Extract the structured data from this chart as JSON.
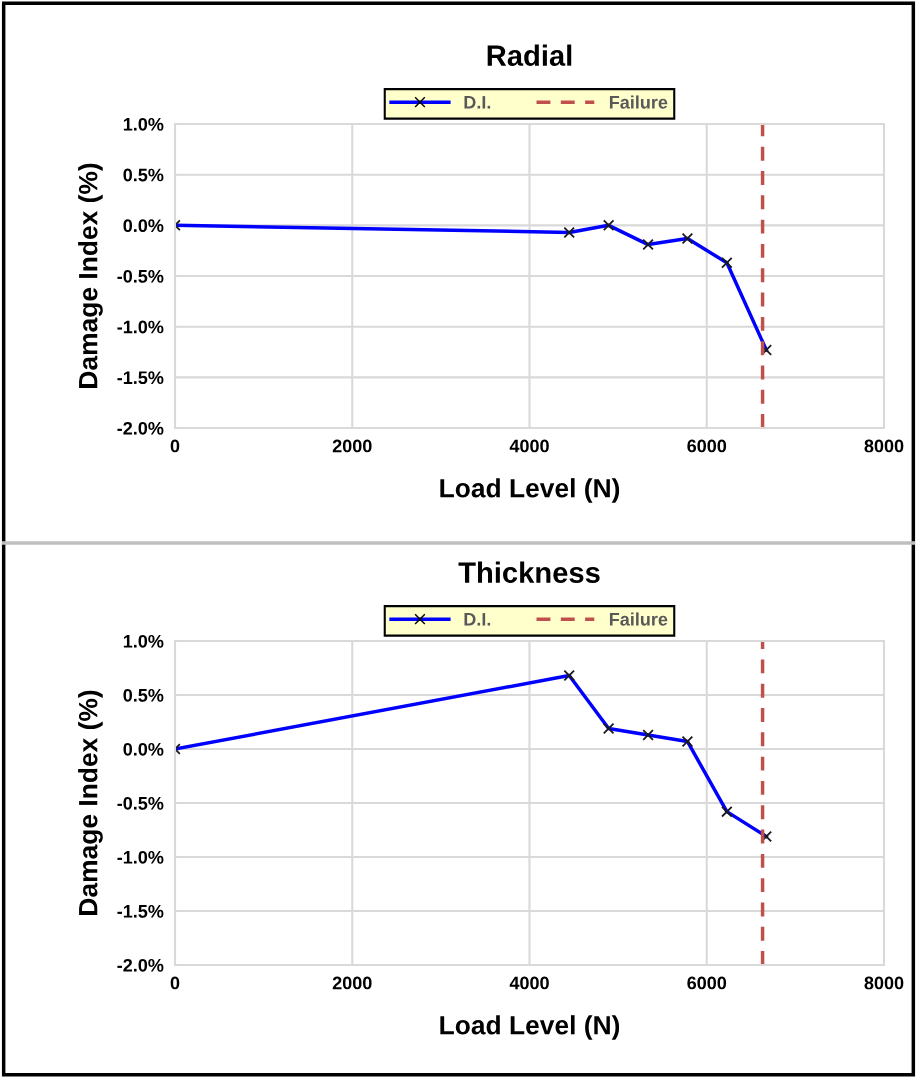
{
  "chart_data": [
    {
      "type": "line",
      "title": "Radial",
      "xlabel": "Load Level (N)",
      "ylabel": "Damage Index (%)",
      "x": [
        0,
        4448,
        4893,
        5338,
        5782,
        6227,
        6672
      ],
      "series": [
        {
          "name": "D.I.",
          "color": "#0000ff",
          "values": [
            0.0,
            -0.07,
            0.0,
            -0.19,
            -0.13,
            -0.37,
            -1.23
          ]
        }
      ],
      "ref_lines": [
        {
          "axis": "x",
          "value": 6630,
          "label": "Failure",
          "color": "#c0504d",
          "line_style": "dashed"
        }
      ],
      "xlim": [
        0,
        8000
      ],
      "xticks": [
        0,
        2000,
        4000,
        6000,
        8000
      ],
      "ylim": [
        -2.0,
        1.0
      ],
      "yticks": [
        {
          "value": -2.0,
          "label": "-2.0%"
        },
        {
          "value": -1.5,
          "label": "-1.5%"
        },
        {
          "value": -1.0,
          "label": "-1.0%"
        },
        {
          "value": -0.5,
          "label": "-0.5%"
        },
        {
          "value": 0.0,
          "label": "0.0%"
        },
        {
          "value": 0.5,
          "label": "0.5%"
        },
        {
          "value": 1.0,
          "label": "1.0%"
        }
      ],
      "grid": true,
      "legend": "top",
      "marker": "cross",
      "line_style": "solid"
    },
    {
      "type": "line",
      "title": "Thickness",
      "xlabel": "Load Level (N)",
      "ylabel": "Damage Index (%)",
      "x": [
        0,
        4448,
        4893,
        5338,
        5782,
        6227,
        6672
      ],
      "series": [
        {
          "name": "D.I.",
          "color": "#0000ff",
          "values": [
            0.0,
            0.68,
            0.19,
            0.13,
            0.07,
            -0.58,
            -0.81
          ]
        }
      ],
      "ref_lines": [
        {
          "axis": "x",
          "value": 6630,
          "label": "Failure",
          "color": "#c0504d",
          "line_style": "dashed"
        }
      ],
      "xlim": [
        0,
        8000
      ],
      "xticks": [
        0,
        2000,
        4000,
        6000,
        8000
      ],
      "ylim": [
        -2.0,
        1.0
      ],
      "yticks": [
        {
          "value": -2.0,
          "label": "-2.0%"
        },
        {
          "value": -1.5,
          "label": "-1.5%"
        },
        {
          "value": -1.0,
          "label": "-1.0%"
        },
        {
          "value": -0.5,
          "label": "-0.5%"
        },
        {
          "value": 0.0,
          "label": "0.0%"
        },
        {
          "value": 0.5,
          "label": "0.5%"
        },
        {
          "value": 1.0,
          "label": "1.0%"
        }
      ],
      "grid": true,
      "legend": "top",
      "marker": "cross",
      "line_style": "solid"
    }
  ]
}
